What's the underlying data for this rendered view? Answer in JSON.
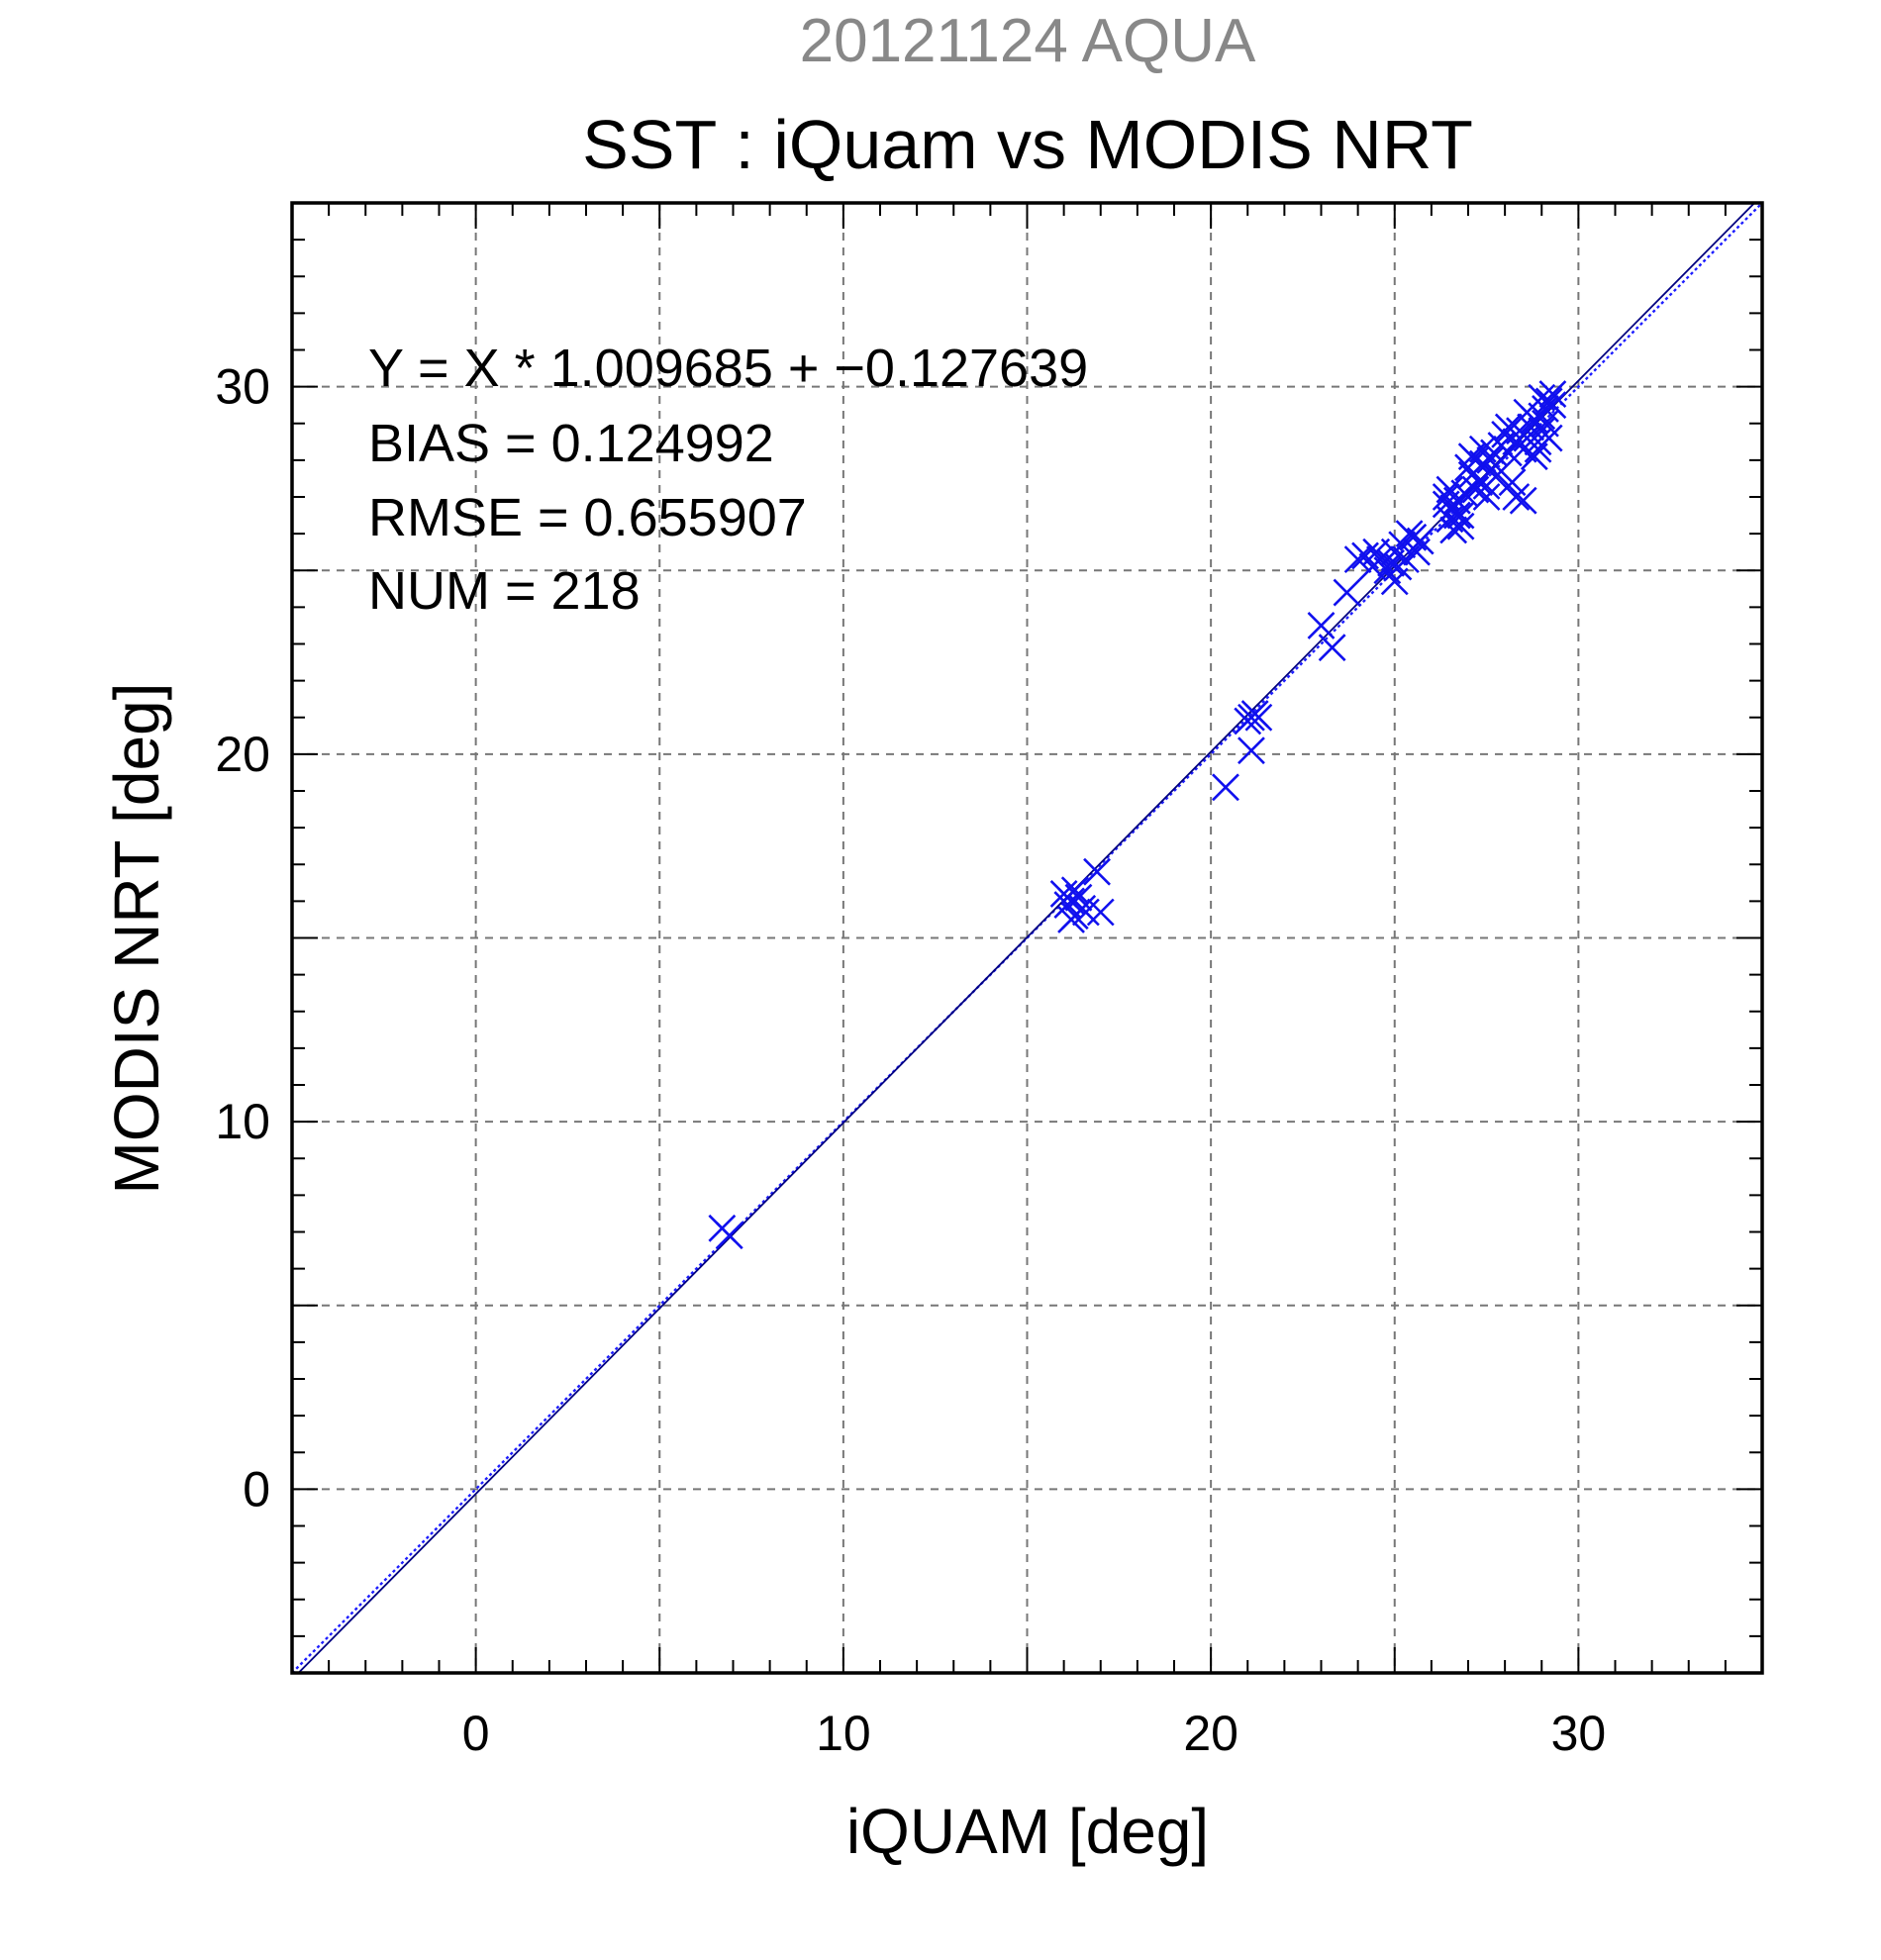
{
  "chart_data": {
    "type": "scatter",
    "subtitle": "20121124 AQUA",
    "title": "SST : iQuam vs MODIS NRT",
    "xlabel": "iQUAM [deg]",
    "ylabel": "MODIS NRT [deg]",
    "xlim": [
      -5,
      35
    ],
    "ylim": [
      -5,
      35
    ],
    "xticks": [
      0,
      10,
      20,
      30
    ],
    "yticks": [
      0,
      10,
      20,
      30
    ],
    "grid": true,
    "annotations": [
      "Y = X * 1.009685 + −0.127639",
      "BIAS = 0.124992",
      "RMSE = 0.655907",
      "NUM = 218"
    ],
    "fit_line": {
      "slope": 1.009685,
      "intercept": -0.127639
    },
    "identity_line": {
      "slope": 1,
      "intercept": 0
    },
    "colors": {
      "points": "#1010ee",
      "fit_line": "#000080",
      "identity_line": "#1e1eff"
    },
    "points": [
      [
        6.7,
        7.1
      ],
      [
        6.9,
        6.9
      ],
      [
        16.0,
        16.2
      ],
      [
        16.1,
        15.9
      ],
      [
        16.2,
        16.0
      ],
      [
        16.3,
        15.6
      ],
      [
        16.4,
        16.1
      ],
      [
        16.5,
        15.8
      ],
      [
        16.3,
        16.3
      ],
      [
        16.6,
        15.7
      ],
      [
        16.2,
        15.5
      ],
      [
        16.9,
        16.8
      ],
      [
        17.0,
        15.7
      ],
      [
        20.4,
        19.1
      ],
      [
        21.1,
        20.1
      ],
      [
        21.1,
        21.0
      ],
      [
        21.2,
        21.1
      ],
      [
        21.0,
        20.9
      ],
      [
        21.3,
        21.0
      ],
      [
        23.0,
        23.5
      ],
      [
        23.3,
        22.9
      ],
      [
        23.7,
        24.4
      ],
      [
        24.0,
        25.3
      ],
      [
        24.2,
        25.4
      ],
      [
        24.4,
        25.1
      ],
      [
        24.6,
        25.3
      ],
      [
        24.8,
        25.0
      ],
      [
        25.0,
        24.7
      ],
      [
        25.0,
        25.5
      ],
      [
        25.2,
        25.7
      ],
      [
        25.3,
        25.3
      ],
      [
        25.5,
        25.9
      ],
      [
        25.6,
        25.5
      ],
      [
        25.4,
        26.0
      ],
      [
        24.5,
        25.5
      ],
      [
        24.9,
        25.2
      ],
      [
        25.7,
        25.8
      ],
      [
        25.1,
        25.1
      ],
      [
        26.4,
        26.8
      ],
      [
        26.5,
        26.4
      ],
      [
        26.6,
        26.1
      ],
      [
        26.7,
        26.9
      ],
      [
        26.8,
        26.5
      ],
      [
        26.4,
        27.0
      ],
      [
        26.9,
        27.1
      ],
      [
        26.6,
        26.7
      ],
      [
        26.5,
        27.2
      ],
      [
        26.8,
        26.2
      ],
      [
        26.7,
        26.5
      ],
      [
        27.0,
        27.8
      ],
      [
        27.1,
        27.6
      ],
      [
        27.2,
        28.0
      ],
      [
        27.3,
        27.4
      ],
      [
        27.4,
        27.9
      ],
      [
        27.5,
        27.3
      ],
      [
        27.6,
        27.7
      ],
      [
        27.7,
        28.2
      ],
      [
        27.2,
        27.2
      ],
      [
        27.4,
        28.3
      ],
      [
        27.8,
        27.6
      ],
      [
        27.1,
        28.1
      ],
      [
        27.5,
        27.0
      ],
      [
        27.6,
        28.0
      ],
      [
        27.9,
        28.4
      ],
      [
        28.0,
        28.7
      ],
      [
        28.1,
        28.2
      ],
      [
        28.2,
        27.4
      ],
      [
        28.3,
        28.5
      ],
      [
        28.4,
        28.8
      ],
      [
        28.5,
        28.3
      ],
      [
        28.6,
        28.6
      ],
      [
        28.7,
        28.9
      ],
      [
        28.8,
        28.1
      ],
      [
        28.3,
        27.0
      ],
      [
        28.5,
        26.9
      ],
      [
        28.9,
        28.5
      ],
      [
        28.1,
        28.9
      ],
      [
        29.0,
        29.2
      ],
      [
        29.1,
        29.4
      ],
      [
        29.2,
        29.6
      ],
      [
        29.3,
        29.8
      ],
      [
        29.0,
        28.8
      ],
      [
        28.9,
        28.3
      ],
      [
        29.1,
        29.0
      ],
      [
        29.3,
        29.5
      ],
      [
        29.0,
        29.7
      ],
      [
        28.8,
        29.1
      ],
      [
        29.2,
        28.6
      ],
      [
        28.6,
        29.3
      ]
    ]
  }
}
